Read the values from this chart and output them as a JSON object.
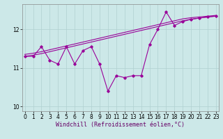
{
  "xlabel": "Windchill (Refroidissement éolien,°C)",
  "bg_color": "#cce8e8",
  "line_color": "#990099",
  "x": [
    0,
    1,
    2,
    3,
    4,
    5,
    6,
    7,
    8,
    9,
    10,
    11,
    12,
    13,
    14,
    15,
    16,
    17,
    18,
    19,
    20,
    21,
    22,
    23
  ],
  "y_line1": [
    11.35,
    11.38,
    11.42,
    11.47,
    11.52,
    11.57,
    11.62,
    11.67,
    11.72,
    11.77,
    11.82,
    11.87,
    11.92,
    11.97,
    12.02,
    12.07,
    12.12,
    12.17,
    12.22,
    12.27,
    12.3,
    12.32,
    12.34,
    12.36
  ],
  "y_line2": [
    11.3,
    11.33,
    11.37,
    11.42,
    11.47,
    11.52,
    11.57,
    11.62,
    11.67,
    11.72,
    11.77,
    11.82,
    11.87,
    11.92,
    11.97,
    12.02,
    12.07,
    12.12,
    12.17,
    12.22,
    12.26,
    12.29,
    12.32,
    12.34
  ],
  "y_zigzag": [
    11.3,
    11.3,
    11.55,
    11.2,
    11.1,
    11.55,
    11.1,
    11.45,
    11.55,
    11.1,
    10.4,
    10.8,
    10.75,
    10.8,
    10.8,
    11.6,
    12.0,
    12.45,
    12.1,
    12.2,
    12.26,
    12.29,
    12.32,
    12.34
  ],
  "ylim": [
    9.88,
    12.65
  ],
  "xlim": [
    -0.3,
    23.3
  ],
  "yticks": [
    10,
    11,
    12
  ],
  "xticks": [
    0,
    1,
    2,
    3,
    4,
    5,
    6,
    7,
    8,
    9,
    10,
    11,
    12,
    13,
    14,
    15,
    16,
    17,
    18,
    19,
    20,
    21,
    22,
    23
  ],
  "tick_fontsize": 5.5,
  "label_fontsize": 6.0,
  "grid_color": "#b0d0d0"
}
